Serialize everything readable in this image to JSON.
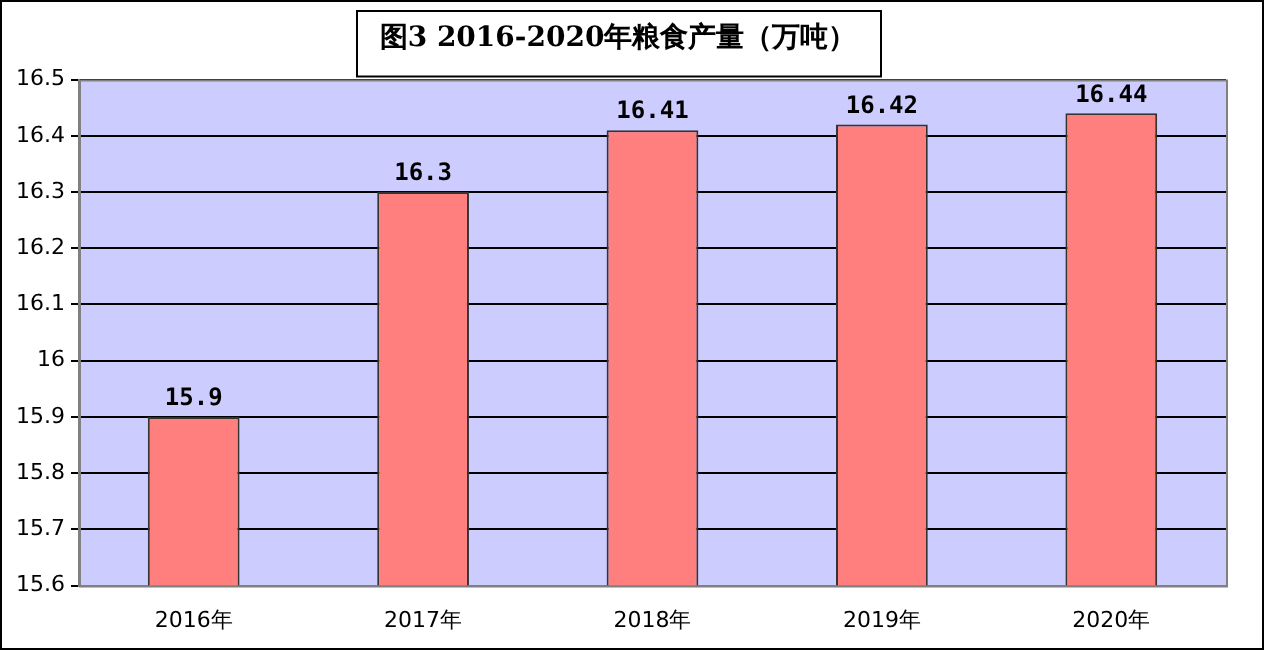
{
  "chart_data": {
    "type": "bar",
    "title": "图3 2016-2020年粮食产量（万吨）",
    "categories": [
      "2016年",
      "2017年",
      "2018年",
      "2019年",
      "2020年"
    ],
    "values": [
      15.9,
      16.3,
      16.41,
      16.42,
      16.44
    ],
    "color": "#ff7f7f",
    "ylim": [
      15.6,
      16.5
    ],
    "yticks": [
      15.6,
      15.7,
      15.8,
      15.9,
      16,
      16.1,
      16.2,
      16.3,
      16.4,
      16.5
    ],
    "grid": "y",
    "data_labels": true,
    "legend": false
  }
}
